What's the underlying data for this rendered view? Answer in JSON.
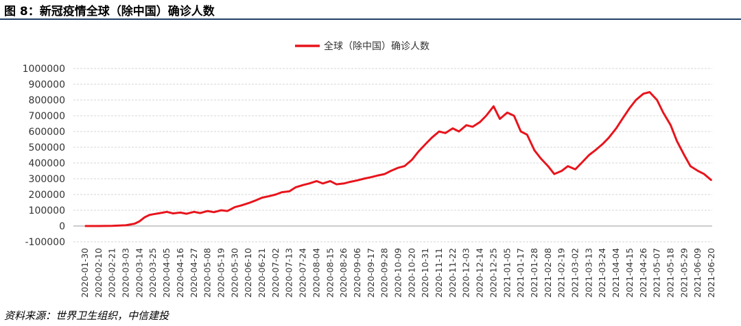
{
  "figure": {
    "title": "图 8：新冠疫情全球（除中国）确诊人数",
    "source": "资料来源：世界卫生组织，中信建投"
  },
  "colors": {
    "series_line": "#e8141c",
    "title_rule": "#1f3f66",
    "grid": "#c8c8c8",
    "axis_text": "#333333"
  },
  "chart_data": {
    "type": "line",
    "title": "",
    "xlabel": "",
    "ylabel": "",
    "ylim": [
      -100000,
      1000000
    ],
    "yticks": [
      -100000,
      0,
      100000,
      200000,
      300000,
      400000,
      500000,
      600000,
      700000,
      800000,
      900000,
      1000000
    ],
    "grid": true,
    "legend_position": "top-center",
    "x_tick_labels": [
      "2020-01-30",
      "2020-02-10",
      "2020-02-21",
      "2020-03-03",
      "2020-03-14",
      "2020-03-25",
      "2020-04-05",
      "2020-04-16",
      "2020-04-27",
      "2020-05-08",
      "2020-05-19",
      "2020-05-30",
      "2020-06-10",
      "2020-06-21",
      "2020-07-02",
      "2020-07-13",
      "2020-07-24",
      "2020-08-04",
      "2020-08-15",
      "2020-08-26",
      "2020-09-06",
      "2020-09-17",
      "2020-09-28",
      "2020-10-09",
      "2020-10-20",
      "2020-10-31",
      "2020-11-11",
      "2020-11-22",
      "2020-12-03",
      "2020-12-14",
      "2020-12-25",
      "2021-01-05",
      "2021-01-17",
      "2021-01-28",
      "2021-02-08",
      "2021-02-19",
      "2021-03-02",
      "2021-03-13",
      "2021-03-24",
      "2021-04-04",
      "2021-04-15",
      "2021-04-26",
      "2021-05-07",
      "2021-05-18",
      "2021-05-29",
      "2021-06-09",
      "2021-06-20"
    ],
    "series": [
      {
        "name": "全球（除中国）确诊人数",
        "x": [
          "2020-01-30",
          "2020-02-10",
          "2020-02-21",
          "2020-03-03",
          "2020-03-10",
          "2020-03-14",
          "2020-03-18",
          "2020-03-22",
          "2020-03-25",
          "2020-03-29",
          "2020-04-02",
          "2020-04-05",
          "2020-04-10",
          "2020-04-16",
          "2020-04-21",
          "2020-04-27",
          "2020-05-02",
          "2020-05-08",
          "2020-05-13",
          "2020-05-19",
          "2020-05-24",
          "2020-05-30",
          "2020-06-04",
          "2020-06-10",
          "2020-06-15",
          "2020-06-21",
          "2020-06-27",
          "2020-07-02",
          "2020-07-07",
          "2020-07-13",
          "2020-07-18",
          "2020-07-24",
          "2020-07-29",
          "2020-08-04",
          "2020-08-09",
          "2020-08-15",
          "2020-08-20",
          "2020-08-26",
          "2020-08-31",
          "2020-09-06",
          "2020-09-11",
          "2020-09-17",
          "2020-09-22",
          "2020-09-28",
          "2020-10-03",
          "2020-10-09",
          "2020-10-14",
          "2020-10-20",
          "2020-10-25",
          "2020-10-31",
          "2020-11-05",
          "2020-11-11",
          "2020-11-16",
          "2020-11-22",
          "2020-11-27",
          "2020-12-03",
          "2020-12-08",
          "2020-12-14",
          "2020-12-19",
          "2020-12-25",
          "2020-12-30",
          "2021-01-05",
          "2021-01-11",
          "2021-01-17",
          "2021-01-22",
          "2021-01-28",
          "2021-02-02",
          "2021-02-08",
          "2021-02-13",
          "2021-02-19",
          "2021-02-24",
          "2021-03-02",
          "2021-03-07",
          "2021-03-13",
          "2021-03-18",
          "2021-03-24",
          "2021-03-29",
          "2021-04-04",
          "2021-04-09",
          "2021-04-15",
          "2021-04-20",
          "2021-04-26",
          "2021-05-01",
          "2021-05-07",
          "2021-05-12",
          "2021-05-18",
          "2021-05-23",
          "2021-05-29",
          "2021-06-03",
          "2021-06-09",
          "2021-06-14",
          "2021-06-20"
        ],
        "values": [
          0,
          0,
          1000,
          5000,
          15000,
          30000,
          55000,
          70000,
          75000,
          80000,
          85000,
          90000,
          80000,
          85000,
          78000,
          90000,
          82000,
          95000,
          88000,
          100000,
          95000,
          120000,
          130000,
          145000,
          160000,
          180000,
          190000,
          200000,
          215000,
          220000,
          245000,
          260000,
          270000,
          285000,
          270000,
          285000,
          265000,
          270000,
          280000,
          290000,
          300000,
          310000,
          320000,
          330000,
          350000,
          370000,
          380000,
          420000,
          470000,
          520000,
          560000,
          600000,
          590000,
          620000,
          600000,
          640000,
          630000,
          660000,
          700000,
          760000,
          680000,
          720000,
          700000,
          600000,
          580000,
          480000,
          430000,
          380000,
          330000,
          350000,
          380000,
          360000,
          400000,
          450000,
          480000,
          520000,
          560000,
          620000,
          680000,
          750000,
          800000,
          840000,
          850000,
          800000,
          720000,
          640000,
          540000,
          450000,
          380000,
          350000,
          330000,
          290000
        ]
      }
    ]
  }
}
